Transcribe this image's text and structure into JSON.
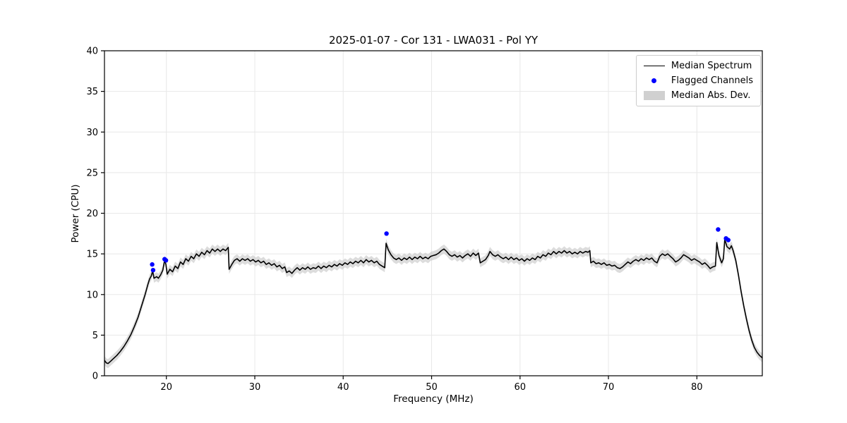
{
  "chart_data": {
    "type": "line",
    "title": "2025-01-07 - Cor 131 - LWA031 - Pol YY",
    "xlabel": "Frequency (MHz)",
    "ylabel": "Power (CPU)",
    "xlim": [
      13.0,
      87.4
    ],
    "ylim": [
      0,
      40
    ],
    "xticks": [
      20,
      30,
      40,
      50,
      60,
      70,
      80
    ],
    "yticks": [
      0,
      5,
      10,
      15,
      20,
      25,
      30,
      35,
      40
    ],
    "grid": true,
    "legend": {
      "position": "upper right",
      "entries": [
        {
          "label": "Median Spectrum",
          "type": "line",
          "color": "#000000"
        },
        {
          "label": "Flagged Channels",
          "type": "point",
          "color": "#0000ff"
        },
        {
          "label": "Median Abs. Dev.",
          "type": "patch",
          "color": "#c0c0c0"
        }
      ]
    },
    "series": [
      {
        "name": "Median Abs. Dev.",
        "type": "band",
        "color": "#c0c0c0",
        "opacity": 0.55,
        "halfwidth": 0.55
      },
      {
        "name": "Median Spectrum",
        "type": "line",
        "color": "#000000",
        "points": [
          [
            13.0,
            1.9
          ],
          [
            13.2,
            1.6
          ],
          [
            13.4,
            1.5
          ],
          [
            13.7,
            1.8
          ],
          [
            14.0,
            2.1
          ],
          [
            14.4,
            2.5
          ],
          [
            14.8,
            3.0
          ],
          [
            15.2,
            3.6
          ],
          [
            15.6,
            4.3
          ],
          [
            16.0,
            5.1
          ],
          [
            16.4,
            6.1
          ],
          [
            16.8,
            7.2
          ],
          [
            17.2,
            8.6
          ],
          [
            17.6,
            10.0
          ],
          [
            17.9,
            11.2
          ],
          [
            18.1,
            11.9
          ],
          [
            18.3,
            12.3
          ],
          [
            18.45,
            12.9
          ],
          [
            18.6,
            12.0
          ],
          [
            18.9,
            12.2
          ],
          [
            19.1,
            12.0
          ],
          [
            19.35,
            12.4
          ],
          [
            19.6,
            13.0
          ],
          [
            19.8,
            14.2
          ],
          [
            19.95,
            13.7
          ],
          [
            20.1,
            12.5
          ],
          [
            20.4,
            13.1
          ],
          [
            20.7,
            12.8
          ],
          [
            21.0,
            13.5
          ],
          [
            21.3,
            13.2
          ],
          [
            21.6,
            14.0
          ],
          [
            21.9,
            13.7
          ],
          [
            22.2,
            14.4
          ],
          [
            22.5,
            14.1
          ],
          [
            22.8,
            14.7
          ],
          [
            23.1,
            14.4
          ],
          [
            23.4,
            15.0
          ],
          [
            23.7,
            14.7
          ],
          [
            24.0,
            15.2
          ],
          [
            24.3,
            14.9
          ],
          [
            24.6,
            15.4
          ],
          [
            24.9,
            15.1
          ],
          [
            25.2,
            15.6
          ],
          [
            25.5,
            15.3
          ],
          [
            25.8,
            15.6
          ],
          [
            26.1,
            15.3
          ],
          [
            26.4,
            15.6
          ],
          [
            26.7,
            15.4
          ],
          [
            27.0,
            15.8
          ],
          [
            27.1,
            13.1
          ],
          [
            27.4,
            13.7
          ],
          [
            27.7,
            14.2
          ],
          [
            28.0,
            14.4
          ],
          [
            28.3,
            14.1
          ],
          [
            28.6,
            14.4
          ],
          [
            28.9,
            14.2
          ],
          [
            29.2,
            14.4
          ],
          [
            29.5,
            14.1
          ],
          [
            29.8,
            14.3
          ],
          [
            30.1,
            14.0
          ],
          [
            30.4,
            14.2
          ],
          [
            30.7,
            13.9
          ],
          [
            31.0,
            14.1
          ],
          [
            31.3,
            13.7
          ],
          [
            31.6,
            13.9
          ],
          [
            31.9,
            13.6
          ],
          [
            32.2,
            13.8
          ],
          [
            32.5,
            13.4
          ],
          [
            32.8,
            13.6
          ],
          [
            33.1,
            13.2
          ],
          [
            33.4,
            13.4
          ],
          [
            33.6,
            12.7
          ],
          [
            33.9,
            12.9
          ],
          [
            34.2,
            12.6
          ],
          [
            34.5,
            13.0
          ],
          [
            34.8,
            13.3
          ],
          [
            35.1,
            13.0
          ],
          [
            35.4,
            13.3
          ],
          [
            35.7,
            13.1
          ],
          [
            36.0,
            13.4
          ],
          [
            36.3,
            13.1
          ],
          [
            36.6,
            13.3
          ],
          [
            36.9,
            13.2
          ],
          [
            37.2,
            13.5
          ],
          [
            37.5,
            13.2
          ],
          [
            37.8,
            13.5
          ],
          [
            38.1,
            13.3
          ],
          [
            38.4,
            13.6
          ],
          [
            38.7,
            13.4
          ],
          [
            39.0,
            13.7
          ],
          [
            39.3,
            13.5
          ],
          [
            39.6,
            13.8
          ],
          [
            39.9,
            13.6
          ],
          [
            40.2,
            13.9
          ],
          [
            40.5,
            13.7
          ],
          [
            40.8,
            14.0
          ],
          [
            41.1,
            13.8
          ],
          [
            41.4,
            14.1
          ],
          [
            41.7,
            13.9
          ],
          [
            42.0,
            14.2
          ],
          [
            42.3,
            13.9
          ],
          [
            42.6,
            14.3
          ],
          [
            42.9,
            14.0
          ],
          [
            43.2,
            14.2
          ],
          [
            43.5,
            13.9
          ],
          [
            43.8,
            14.1
          ],
          [
            44.1,
            13.7
          ],
          [
            44.4,
            13.5
          ],
          [
            44.7,
            13.3
          ],
          [
            44.85,
            16.3
          ],
          [
            45.1,
            15.5
          ],
          [
            45.4,
            14.9
          ],
          [
            45.7,
            14.5
          ],
          [
            46.0,
            14.3
          ],
          [
            46.3,
            14.5
          ],
          [
            46.6,
            14.2
          ],
          [
            46.9,
            14.5
          ],
          [
            47.2,
            14.3
          ],
          [
            47.5,
            14.6
          ],
          [
            47.8,
            14.3
          ],
          [
            48.1,
            14.6
          ],
          [
            48.4,
            14.4
          ],
          [
            48.7,
            14.7
          ],
          [
            49.0,
            14.4
          ],
          [
            49.3,
            14.6
          ],
          [
            49.6,
            14.4
          ],
          [
            49.9,
            14.7
          ],
          [
            50.2,
            14.8
          ],
          [
            50.5,
            14.9
          ],
          [
            50.8,
            15.1
          ],
          [
            51.1,
            15.4
          ],
          [
            51.4,
            15.6
          ],
          [
            51.7,
            15.3
          ],
          [
            52.0,
            14.9
          ],
          [
            52.3,
            14.7
          ],
          [
            52.6,
            14.9
          ],
          [
            52.9,
            14.6
          ],
          [
            53.2,
            14.8
          ],
          [
            53.5,
            14.5
          ],
          [
            53.8,
            14.8
          ],
          [
            54.1,
            15.0
          ],
          [
            54.4,
            14.7
          ],
          [
            54.7,
            15.1
          ],
          [
            55.0,
            14.8
          ],
          [
            55.3,
            15.1
          ],
          [
            55.5,
            13.9
          ],
          [
            55.8,
            14.1
          ],
          [
            56.1,
            14.3
          ],
          [
            56.4,
            14.8
          ],
          [
            56.6,
            15.3
          ],
          [
            56.9,
            14.9
          ],
          [
            57.2,
            14.7
          ],
          [
            57.5,
            14.9
          ],
          [
            57.8,
            14.6
          ],
          [
            58.1,
            14.4
          ],
          [
            58.4,
            14.6
          ],
          [
            58.7,
            14.3
          ],
          [
            59.0,
            14.6
          ],
          [
            59.3,
            14.3
          ],
          [
            59.6,
            14.5
          ],
          [
            59.9,
            14.2
          ],
          [
            60.2,
            14.4
          ],
          [
            60.5,
            14.1
          ],
          [
            60.8,
            14.4
          ],
          [
            61.1,
            14.2
          ],
          [
            61.4,
            14.5
          ],
          [
            61.7,
            14.3
          ],
          [
            62.0,
            14.7
          ],
          [
            62.3,
            14.5
          ],
          [
            62.6,
            14.9
          ],
          [
            62.9,
            14.7
          ],
          [
            63.2,
            15.1
          ],
          [
            63.5,
            14.9
          ],
          [
            63.8,
            15.3
          ],
          [
            64.1,
            15.0
          ],
          [
            64.4,
            15.3
          ],
          [
            64.7,
            15.1
          ],
          [
            65.0,
            15.4
          ],
          [
            65.3,
            15.1
          ],
          [
            65.6,
            15.3
          ],
          [
            65.9,
            15.0
          ],
          [
            66.2,
            15.2
          ],
          [
            66.5,
            15.0
          ],
          [
            66.8,
            15.3
          ],
          [
            67.1,
            15.1
          ],
          [
            67.4,
            15.3
          ],
          [
            67.7,
            15.2
          ],
          [
            67.9,
            15.4
          ],
          [
            68.0,
            13.9
          ],
          [
            68.3,
            14.1
          ],
          [
            68.6,
            13.8
          ],
          [
            68.9,
            13.9
          ],
          [
            69.2,
            13.7
          ],
          [
            69.5,
            13.9
          ],
          [
            69.8,
            13.6
          ],
          [
            70.1,
            13.7
          ],
          [
            70.4,
            13.5
          ],
          [
            70.7,
            13.6
          ],
          [
            71.0,
            13.3
          ],
          [
            71.3,
            13.2
          ],
          [
            71.6,
            13.4
          ],
          [
            71.9,
            13.7
          ],
          [
            72.2,
            14.0
          ],
          [
            72.5,
            13.8
          ],
          [
            72.8,
            14.1
          ],
          [
            73.1,
            14.3
          ],
          [
            73.4,
            14.1
          ],
          [
            73.7,
            14.4
          ],
          [
            74.0,
            14.2
          ],
          [
            74.3,
            14.5
          ],
          [
            74.6,
            14.3
          ],
          [
            74.9,
            14.5
          ],
          [
            75.2,
            14.1
          ],
          [
            75.5,
            13.9
          ],
          [
            75.8,
            14.7
          ],
          [
            76.1,
            15.0
          ],
          [
            76.4,
            14.8
          ],
          [
            76.7,
            15.0
          ],
          [
            77.0,
            14.7
          ],
          [
            77.3,
            14.4
          ],
          [
            77.6,
            14.0
          ],
          [
            77.9,
            14.2
          ],
          [
            78.2,
            14.5
          ],
          [
            78.5,
            14.9
          ],
          [
            78.8,
            14.7
          ],
          [
            79.1,
            14.5
          ],
          [
            79.4,
            14.2
          ],
          [
            79.7,
            14.4
          ],
          [
            80.0,
            14.2
          ],
          [
            80.3,
            14.0
          ],
          [
            80.6,
            13.7
          ],
          [
            80.9,
            13.9
          ],
          [
            81.2,
            13.6
          ],
          [
            81.5,
            13.2
          ],
          [
            81.8,
            13.4
          ],
          [
            82.1,
            13.5
          ],
          [
            82.25,
            16.4
          ],
          [
            82.5,
            14.8
          ],
          [
            82.8,
            13.9
          ],
          [
            83.0,
            14.4
          ],
          [
            83.15,
            16.8
          ],
          [
            83.4,
            15.9
          ],
          [
            83.7,
            15.6
          ],
          [
            83.9,
            16.0
          ],
          [
            84.1,
            15.4
          ],
          [
            84.4,
            14.2
          ],
          [
            84.7,
            12.4
          ],
          [
            85.0,
            10.4
          ],
          [
            85.3,
            8.6
          ],
          [
            85.6,
            7.0
          ],
          [
            85.9,
            5.6
          ],
          [
            86.2,
            4.4
          ],
          [
            86.5,
            3.5
          ],
          [
            86.8,
            2.9
          ],
          [
            87.1,
            2.5
          ],
          [
            87.4,
            2.2
          ]
        ]
      },
      {
        "name": "Flagged Channels",
        "type": "scatter",
        "color": "#0000ff",
        "points": [
          [
            18.4,
            13.7
          ],
          [
            18.5,
            13.0
          ],
          [
            19.8,
            14.35
          ],
          [
            19.95,
            14.2
          ],
          [
            44.9,
            17.5
          ],
          [
            82.4,
            18.0
          ],
          [
            83.3,
            16.9
          ],
          [
            83.55,
            16.7
          ]
        ]
      }
    ]
  }
}
